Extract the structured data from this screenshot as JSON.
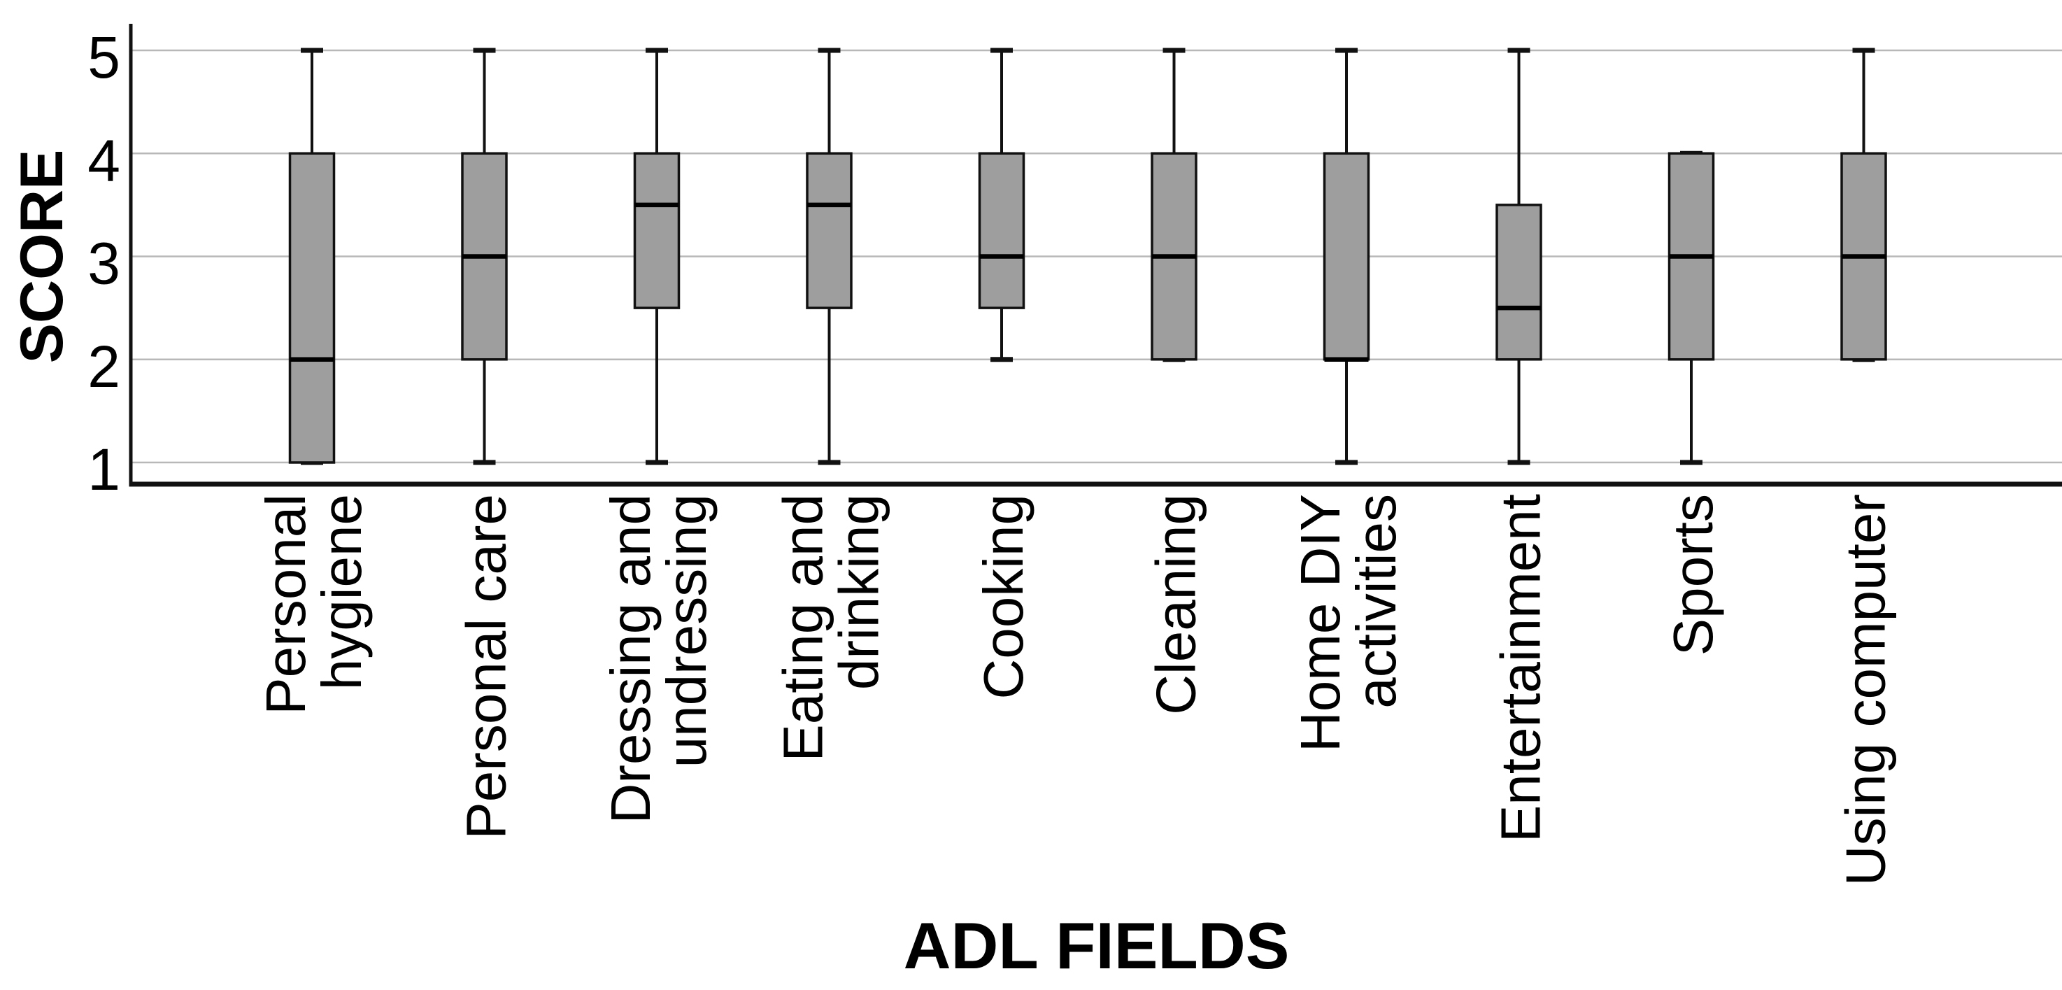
{
  "chart_data": {
    "type": "box",
    "title": "",
    "xlabel": "ADL FIELDS",
    "ylabel": "SCORE",
    "ylim": [
      1,
      5
    ],
    "yticks": [
      5,
      4,
      3,
      2,
      1
    ],
    "ytick_labels": [
      "5",
      "4",
      "3",
      "2",
      "1"
    ],
    "grid": "horizontal",
    "legend": "none",
    "categories": [
      "Personal hygiene",
      "Personal care",
      "Dressing and undressing",
      "Eating and drinking",
      "Cooking",
      "Cleaning",
      "Home DIY activities",
      "Entertainment",
      "Sports",
      "Using computer"
    ],
    "series": [
      {
        "label": "Personal hygiene",
        "label_lines": [
          "Personal",
          "hygiene"
        ],
        "min": 1,
        "q1": 1,
        "median": 2,
        "q3": 4,
        "max": 5
      },
      {
        "label": "Personal care",
        "label_lines": [
          "Personal care"
        ],
        "min": 1,
        "q1": 2,
        "median": 3,
        "q3": 4,
        "max": 5
      },
      {
        "label": "Dressing and undressing",
        "label_lines": [
          "Dressing and",
          "undressing"
        ],
        "min": 1,
        "q1": 2.5,
        "median": 3.5,
        "q3": 4,
        "max": 5
      },
      {
        "label": "Eating and drinking",
        "label_lines": [
          "Eating and",
          "drinking"
        ],
        "min": 1,
        "q1": 2.5,
        "median": 3.5,
        "q3": 4,
        "max": 5
      },
      {
        "label": "Cooking",
        "label_lines": [
          "Cooking"
        ],
        "min": 2,
        "q1": 2.5,
        "median": 3,
        "q3": 4,
        "max": 5
      },
      {
        "label": "Cleaning",
        "label_lines": [
          "Cleaning"
        ],
        "min": 2,
        "q1": 2,
        "median": 3,
        "q3": 4,
        "max": 5
      },
      {
        "label": "Home DIY activities",
        "label_lines": [
          "Home DIY",
          "activities"
        ],
        "min": 1,
        "q1": 2,
        "median": 2,
        "q3": 4,
        "max": 5
      },
      {
        "label": "Entertainment",
        "label_lines": [
          "Entertainment"
        ],
        "min": 1,
        "q1": 2,
        "median": 2.5,
        "q3": 3.5,
        "max": 5
      },
      {
        "label": "Sports",
        "label_lines": [
          "Sports"
        ],
        "min": 1,
        "q1": 2,
        "median": 3,
        "q3": 4,
        "max": 4
      },
      {
        "label": "Using computer",
        "label_lines": [
          "Using computer"
        ],
        "min": 2,
        "q1": 2,
        "median": 3,
        "q3": 4,
        "max": 5
      }
    ],
    "colors": {
      "box_fill": "#9e9e9e",
      "box_stroke": "#111111",
      "median": "#000000",
      "whisker": "#111111",
      "gridline": "#b8b8b8",
      "axis": "#111111",
      "text": "#000000",
      "background": "#ffffff"
    }
  }
}
